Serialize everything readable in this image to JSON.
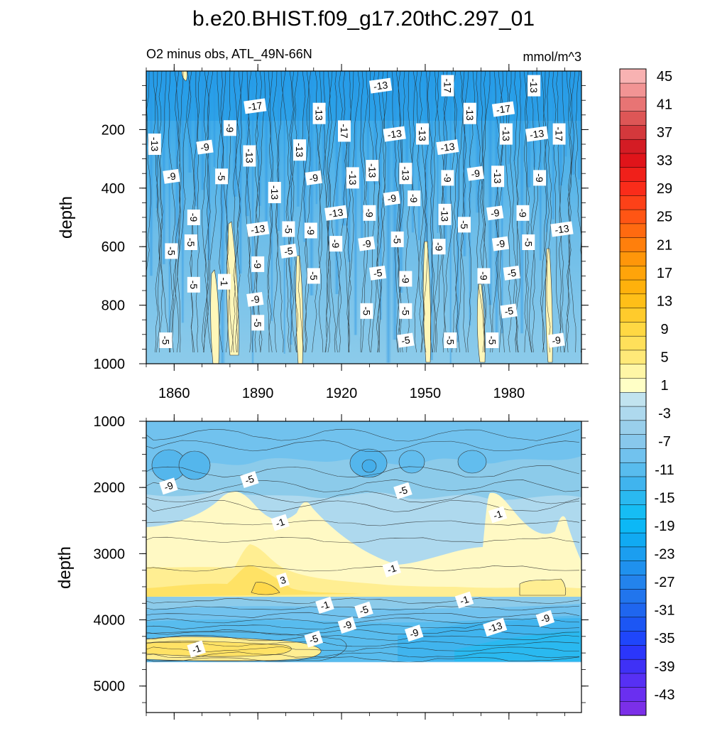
{
  "chart_data": {
    "type": "filled-contour",
    "title": "b.e20.BHIST.f09_g17.20thC.297_01",
    "subtitle_left": "O2 minus obs, ATL_49N-66N",
    "subtitle_right": "mmol/m^3",
    "xlabel": "",
    "x_range": [
      1850,
      2006
    ],
    "x_ticks": [
      1860,
      1890,
      1920,
      1950,
      1980
    ],
    "x_tick_labels": [
      "1860",
      "1890",
      "1920",
      "1950",
      "1980"
    ],
    "panels": [
      {
        "name": "upper",
        "ylabel": "depth",
        "y_range": [
          0,
          1000
        ],
        "y_ticks": [
          200,
          400,
          600,
          800,
          1000
        ],
        "y_tick_labels": [
          "200",
          "400",
          "600",
          "800",
          "1000"
        ],
        "contour_labels": [
          {
            "text": "-13",
            "year": 1934,
            "depth": 50
          },
          {
            "text": "-17",
            "year": 1958,
            "depth": 50
          },
          {
            "text": "-13",
            "year": 1989,
            "depth": 50
          },
          {
            "text": "-17",
            "year": 1889,
            "depth": 120
          },
          {
            "text": "-13",
            "year": 1912,
            "depth": 145
          },
          {
            "text": "-13",
            "year": 1966,
            "depth": 145
          },
          {
            "text": "-17",
            "year": 1978,
            "depth": 130
          },
          {
            "text": "-9",
            "year": 1880,
            "depth": 195
          },
          {
            "text": "-17",
            "year": 1921,
            "depth": 205
          },
          {
            "text": "-13",
            "year": 1939,
            "depth": 215
          },
          {
            "text": "-13",
            "year": 1949,
            "depth": 215
          },
          {
            "text": "-13",
            "year": 1979,
            "depth": 215
          },
          {
            "text": "-13",
            "year": 1990,
            "depth": 215
          },
          {
            "text": "-17",
            "year": 1998,
            "depth": 215
          },
          {
            "text": "-13",
            "year": 1853,
            "depth": 250
          },
          {
            "text": "-9",
            "year": 1871,
            "depth": 260
          },
          {
            "text": "-13",
            "year": 1887,
            "depth": 290
          },
          {
            "text": "-13",
            "year": 1905,
            "depth": 270
          },
          {
            "text": "-13",
            "year": 1958,
            "depth": 260
          },
          {
            "text": "-13",
            "year": 1931,
            "depth": 340
          },
          {
            "text": "-13",
            "year": 1943,
            "depth": 350
          },
          {
            "text": "-9",
            "year": 1859,
            "depth": 360
          },
          {
            "text": "-5",
            "year": 1877,
            "depth": 360
          },
          {
            "text": "-13",
            "year": 1896,
            "depth": 415
          },
          {
            "text": "-9",
            "year": 1910,
            "depth": 365
          },
          {
            "text": "-13",
            "year": 1924,
            "depth": 365
          },
          {
            "text": "-9",
            "year": 1958,
            "depth": 365
          },
          {
            "text": "-9",
            "year": 1968,
            "depth": 350
          },
          {
            "text": "-13",
            "year": 1976,
            "depth": 360
          },
          {
            "text": "-9",
            "year": 1991,
            "depth": 365
          },
          {
            "text": "-9",
            "year": 1938,
            "depth": 435
          },
          {
            "text": "-9",
            "year": 1946,
            "depth": 435
          },
          {
            "text": "-9",
            "year": 1867,
            "depth": 500
          },
          {
            "text": "-13",
            "year": 1918,
            "depth": 485
          },
          {
            "text": "-9",
            "year": 1930,
            "depth": 485
          },
          {
            "text": "-13",
            "year": 1957,
            "depth": 490
          },
          {
            "text": "-9",
            "year": 1975,
            "depth": 485
          },
          {
            "text": "-9",
            "year": 1985,
            "depth": 485
          },
          {
            "text": "-5",
            "year": 1964,
            "depth": 525
          },
          {
            "text": "-13",
            "year": 1890,
            "depth": 540
          },
          {
            "text": "-5",
            "year": 1901,
            "depth": 540
          },
          {
            "text": "-9",
            "year": 1909,
            "depth": 545
          },
          {
            "text": "-13",
            "year": 1999,
            "depth": 540
          },
          {
            "text": "-5",
            "year": 1866,
            "depth": 585
          },
          {
            "text": "-9",
            "year": 1918,
            "depth": 590
          },
          {
            "text": "-9",
            "year": 1929,
            "depth": 590
          },
          {
            "text": "-5",
            "year": 1940,
            "depth": 575
          },
          {
            "text": "-9",
            "year": 1955,
            "depth": 600
          },
          {
            "text": "-9",
            "year": 1977,
            "depth": 590
          },
          {
            "text": "-5",
            "year": 1987,
            "depth": 585
          },
          {
            "text": "-5",
            "year": 1859,
            "depth": 615
          },
          {
            "text": "-5",
            "year": 1901,
            "depth": 615
          },
          {
            "text": "-9",
            "year": 1890,
            "depth": 660
          },
          {
            "text": "-5",
            "year": 1910,
            "depth": 700
          },
          {
            "text": "-5",
            "year": 1933,
            "depth": 690
          },
          {
            "text": "-9",
            "year": 1943,
            "depth": 710
          },
          {
            "text": "-9",
            "year": 1971,
            "depth": 700
          },
          {
            "text": "-5",
            "year": 1981,
            "depth": 690
          },
          {
            "text": "-5",
            "year": 1867,
            "depth": 730
          },
          {
            "text": "-1",
            "year": 1878,
            "depth": 720
          },
          {
            "text": "-9",
            "year": 1889,
            "depth": 780
          },
          {
            "text": "-5",
            "year": 1929,
            "depth": 820
          },
          {
            "text": "-5",
            "year": 1943,
            "depth": 820
          },
          {
            "text": "-5",
            "year": 1980,
            "depth": 820
          },
          {
            "text": "-5",
            "year": 1890,
            "depth": 860
          },
          {
            "text": "-5",
            "year": 1857,
            "depth": 920
          },
          {
            "text": "-5",
            "year": 1943,
            "depth": 920
          },
          {
            "text": "-5",
            "year": 1959,
            "depth": 920
          },
          {
            "text": "-5",
            "year": 1974,
            "depth": 920
          },
          {
            "text": "-9",
            "year": 1997,
            "depth": 920
          }
        ]
      },
      {
        "name": "lower",
        "ylabel": "depth",
        "y_range": [
          1000,
          5400
        ],
        "y_ticks": [
          1000,
          2000,
          3000,
          4000,
          5000
        ],
        "y_tick_labels": [
          "1000",
          "2000",
          "3000",
          "4000",
          "5000"
        ],
        "data_floor_depth": 4640,
        "contour_labels": [
          {
            "text": "-9",
            "year": 1858,
            "depth": 1980
          },
          {
            "text": "-5",
            "year": 1887,
            "depth": 1880
          },
          {
            "text": "-5",
            "year": 1942,
            "depth": 2050
          },
          {
            "text": "-1",
            "year": 1898,
            "depth": 2530
          },
          {
            "text": "-1",
            "year": 1976,
            "depth": 2410
          },
          {
            "text": "-1",
            "year": 1938,
            "depth": 3230
          },
          {
            "text": "3",
            "year": 1899,
            "depth": 3400
          },
          {
            "text": "-1",
            "year": 1914,
            "depth": 3780
          },
          {
            "text": "-1",
            "year": 1964,
            "depth": 3700
          },
          {
            "text": "-5",
            "year": 1928,
            "depth": 3850
          },
          {
            "text": "-9",
            "year": 1922,
            "depth": 4080
          },
          {
            "text": "-9",
            "year": 1946,
            "depth": 4200
          },
          {
            "text": "-13",
            "year": 1975,
            "depth": 4110
          },
          {
            "text": "-9",
            "year": 1993,
            "depth": 3980
          },
          {
            "text": "-5",
            "year": 1910,
            "depth": 4290
          },
          {
            "text": "-1",
            "year": 1868,
            "depth": 4440
          }
        ]
      }
    ],
    "colorbar": {
      "levels": [
        -45,
        -43,
        -41,
        -39,
        -37,
        -35,
        -33,
        -31,
        -29,
        -27,
        -25,
        -23,
        -21,
        -19,
        -17,
        -15,
        -13,
        -11,
        -9,
        -7,
        -5,
        -3,
        -1,
        1,
        3,
        5,
        7,
        9,
        11,
        13,
        15,
        17,
        19,
        21,
        23,
        25,
        27,
        29,
        31,
        33,
        35,
        37,
        39,
        41,
        43,
        45
      ],
      "colors": [
        "#7b2fe8",
        "#6a2ff0",
        "#5730f4",
        "#3f31f6",
        "#2b36fb",
        "#1f46fb",
        "#1c56f4",
        "#1f66ef",
        "#2175ed",
        "#2383ec",
        "#1f91ee",
        "#1b9ef0",
        "#11aaf2",
        "#0cb8f6",
        "#16bdf4",
        "#2ab9f0",
        "#40b4ee",
        "#58bcee",
        "#71c2ee",
        "#88c8ec",
        "#99cfeb",
        "#aed9ee",
        "#c1e3ef",
        "#ffffc6",
        "#fff6a6",
        "#ffe978",
        "#ffe05a",
        "#ffd843",
        "#ffcb2c",
        "#ffbf18",
        "#ffb10c",
        "#ffa40a",
        "#ff960a",
        "#ff7f0c",
        "#ff6a10",
        "#ff5514",
        "#fd4118",
        "#fa2c1a",
        "#f0201a",
        "#e0141a",
        "#d41c24",
        "#d4383c",
        "#dd5656",
        "#e87474",
        "#f29494",
        "#f8b2b2"
      ],
      "tick_labels": [
        "45",
        "41",
        "37",
        "33",
        "29",
        "25",
        "21",
        "17",
        "13",
        "9",
        "5",
        "1",
        "-3",
        "-7",
        "-11",
        "-15",
        "-19",
        "-23",
        "-27",
        "-31",
        "-35",
        "-39",
        "-43"
      ]
    }
  }
}
